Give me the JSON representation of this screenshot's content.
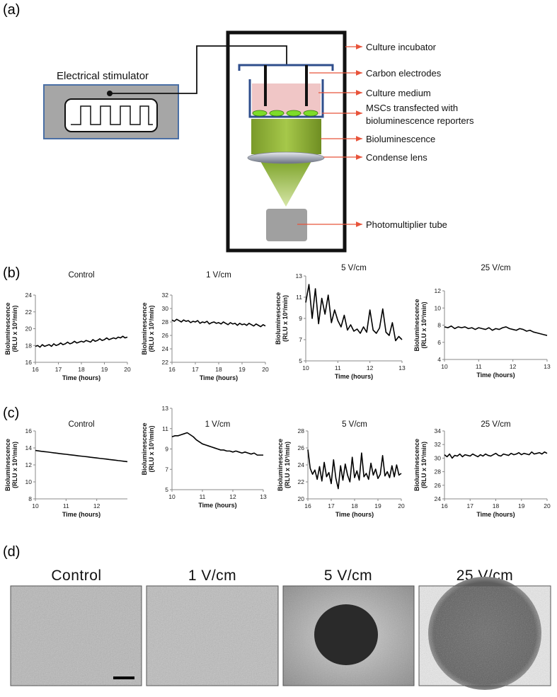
{
  "panel_labels": [
    "(a)",
    "(b)",
    "(c)",
    "(d)"
  ],
  "diagram": {
    "stimulator": "Electrical stimulator",
    "callouts": [
      [
        "Culture incubator"
      ],
      [
        "Carbon electrodes"
      ],
      [
        "Culture medium"
      ],
      [
        "MSCs transfected with",
        "bioluminescence reporters"
      ],
      [
        "Bioluminescence"
      ],
      [
        "Condense lens"
      ],
      [
        "Photomultiplier tube"
      ]
    ]
  },
  "chart_data": [
    {
      "type": "line",
      "title": "Control",
      "xlabel": "Time (hours)",
      "ylabel": [
        "Bioluminescence",
        "(RLU x 10³/min)"
      ],
      "color": "#000000",
      "x": [
        16,
        16.1,
        16.2,
        16.3,
        16.4,
        16.5,
        16.6,
        16.7,
        16.8,
        16.9,
        17,
        17.1,
        17.2,
        17.3,
        17.4,
        17.5,
        17.6,
        17.7,
        17.8,
        17.9,
        18,
        18.1,
        18.2,
        18.3,
        18.4,
        18.5,
        18.6,
        18.7,
        18.8,
        18.9,
        19,
        19.1,
        19.2,
        19.3,
        19.4,
        19.5,
        19.6,
        19.7,
        19.8,
        19.9,
        20
      ],
      "values": [
        17.9,
        18.0,
        17.8,
        18.1,
        17.9,
        18.0,
        18.1,
        17.9,
        18.2,
        18.0,
        18.1,
        18.3,
        18.1,
        18.2,
        18.4,
        18.2,
        18.3,
        18.5,
        18.3,
        18.4,
        18.5,
        18.4,
        18.6,
        18.5,
        18.4,
        18.7,
        18.5,
        18.6,
        18.8,
        18.6,
        18.7,
        18.9,
        18.7,
        18.8,
        18.9,
        18.8,
        19.0,
        18.9,
        19.1,
        18.9,
        19.0
      ],
      "xlim": [
        16,
        20
      ],
      "xticks": [
        16,
        17,
        18,
        19,
        20
      ],
      "ylim": [
        16,
        24
      ],
      "yticks": [
        16,
        18,
        20,
        22,
        24
      ]
    },
    {
      "type": "line",
      "title": "1 V/cm",
      "xlabel": "Time (hours)",
      "ylabel": [
        "Bioluminescence",
        "(RLU x 10³/min)"
      ],
      "color": "#000000",
      "x": [
        16,
        16.1,
        16.2,
        16.3,
        16.4,
        16.5,
        16.6,
        16.7,
        16.8,
        16.9,
        17,
        17.1,
        17.2,
        17.3,
        17.4,
        17.5,
        17.6,
        17.7,
        17.8,
        17.9,
        18,
        18.1,
        18.2,
        18.3,
        18.4,
        18.5,
        18.6,
        18.7,
        18.8,
        18.9,
        19,
        19.1,
        19.2,
        19.3,
        19.4,
        19.5,
        19.6,
        19.7,
        19.8,
        19.9,
        20
      ],
      "values": [
        28.3,
        28.1,
        28.4,
        28.2,
        28.0,
        28.3,
        28.1,
        28.2,
        27.9,
        28.1,
        28.0,
        28.2,
        27.8,
        28.0,
        27.9,
        28.1,
        27.7,
        27.9,
        28.0,
        27.8,
        27.9,
        27.7,
        28.0,
        27.8,
        27.6,
        27.9,
        27.7,
        27.8,
        27.5,
        27.8,
        27.6,
        27.7,
        27.5,
        27.8,
        27.6,
        27.4,
        27.7,
        27.5,
        27.3,
        27.6,
        27.4
      ],
      "xlim": [
        16,
        20
      ],
      "xticks": [
        16,
        17,
        18,
        19,
        20
      ],
      "ylim": [
        22,
        32
      ],
      "yticks": [
        22,
        24,
        26,
        28,
        30,
        32
      ]
    },
    {
      "type": "line",
      "title": "5 V/cm",
      "xlabel": "Time (hours)",
      "ylabel": [
        "Bioluminescence",
        "(RLU x 10³/min)"
      ],
      "color": "#000000",
      "x": [
        10,
        10.1,
        10.2,
        10.3,
        10.4,
        10.5,
        10.6,
        10.7,
        10.8,
        10.9,
        11,
        11.1,
        11.2,
        11.3,
        11.4,
        11.5,
        11.6,
        11.7,
        11.8,
        11.9,
        12,
        12.1,
        12.2,
        12.3,
        12.4,
        12.5,
        12.6,
        12.7,
        12.8,
        12.9,
        13
      ],
      "values": [
        10.5,
        12.2,
        9.0,
        11.8,
        8.5,
        10.9,
        9.4,
        11.2,
        8.6,
        9.8,
        8.8,
        8.2,
        9.3,
        7.9,
        8.4,
        7.8,
        8.0,
        7.6,
        8.2,
        7.7,
        9.8,
        7.9,
        7.6,
        8.1,
        9.9,
        7.7,
        7.4,
        8.6,
        6.9,
        7.3,
        7.0
      ],
      "xlim": [
        10,
        13
      ],
      "xticks": [
        10,
        11,
        12,
        13
      ],
      "ylim": [
        5,
        13
      ],
      "yticks": [
        5,
        7,
        9,
        11,
        13
      ]
    },
    {
      "type": "line",
      "title": "25 V/cm",
      "xlabel": "Time (hours)",
      "ylabel": [
        "Bioluminescence",
        "(RLU x 10³/min)"
      ],
      "color": "#000000",
      "x": [
        10,
        10.1,
        10.2,
        10.3,
        10.4,
        10.5,
        10.6,
        10.7,
        10.8,
        10.9,
        11,
        11.1,
        11.2,
        11.3,
        11.4,
        11.5,
        11.6,
        11.7,
        11.8,
        11.9,
        12,
        12.1,
        12.2,
        12.3,
        12.4,
        12.5,
        12.6,
        12.7,
        12.8,
        12.9,
        13
      ],
      "values": [
        7.8,
        7.7,
        7.9,
        7.6,
        7.8,
        7.7,
        7.8,
        7.6,
        7.7,
        7.5,
        7.7,
        7.6,
        7.5,
        7.7,
        7.4,
        7.6,
        7.5,
        7.7,
        7.8,
        7.6,
        7.5,
        7.4,
        7.6,
        7.5,
        7.3,
        7.4,
        7.2,
        7.1,
        7.0,
        6.9,
        6.8
      ],
      "xlim": [
        10,
        13
      ],
      "xticks": [
        10,
        11,
        12,
        13
      ],
      "ylim": [
        4,
        12
      ],
      "yticks": [
        4,
        6,
        8,
        10,
        12
      ]
    },
    {
      "type": "line",
      "title": "Control",
      "xlabel": "Time (hours)",
      "ylabel": [
        "Bioluminescence",
        "(RLU x 10³/min)"
      ],
      "color": "#000000",
      "x": [
        10,
        10.1,
        10.2,
        10.3,
        10.4,
        10.5,
        10.6,
        10.7,
        10.8,
        10.9,
        11,
        11.1,
        11.2,
        11.3,
        11.4,
        11.5,
        11.6,
        11.7,
        11.8,
        11.9,
        12,
        12.1,
        12.2,
        12.3,
        12.4,
        12.5,
        12.6,
        12.7,
        12.8,
        12.9,
        13
      ],
      "values": [
        13.7,
        13.65,
        13.6,
        13.56,
        13.52,
        13.47,
        13.42,
        13.38,
        13.33,
        13.29,
        13.25,
        13.2,
        13.16,
        13.12,
        13.07,
        13.03,
        12.99,
        12.95,
        12.9,
        12.86,
        12.82,
        12.77,
        12.73,
        12.69,
        12.64,
        12.6,
        12.56,
        12.51,
        12.47,
        12.42,
        12.38
      ],
      "xlim": [
        10,
        13
      ],
      "xticks": [
        10,
        11,
        12
      ],
      "ylim": [
        8,
        16
      ],
      "yticks": [
        8,
        10,
        12,
        14,
        16
      ]
    },
    {
      "type": "line",
      "title": "1 V/cm",
      "xlabel": "Time (hours)",
      "ylabel": [
        "Bioluminescence",
        "(RLU x 10³/min)"
      ],
      "color": "#000000",
      "x": [
        10,
        10.1,
        10.2,
        10.3,
        10.4,
        10.5,
        10.6,
        10.7,
        10.8,
        10.9,
        11,
        11.1,
        11.2,
        11.3,
        11.4,
        11.5,
        11.6,
        11.7,
        11.8,
        11.9,
        12,
        12.1,
        12.2,
        12.3,
        12.4,
        12.5,
        12.6,
        12.7,
        12.8,
        12.9,
        13
      ],
      "values": [
        10.2,
        10.3,
        10.3,
        10.4,
        10.5,
        10.6,
        10.4,
        10.2,
        9.9,
        9.7,
        9.5,
        9.4,
        9.3,
        9.2,
        9.1,
        9.0,
        8.9,
        8.9,
        8.8,
        8.8,
        8.7,
        8.8,
        8.7,
        8.6,
        8.7,
        8.6,
        8.5,
        8.6,
        8.4,
        8.4,
        8.4
      ],
      "xlim": [
        10,
        13
      ],
      "xticks": [
        10,
        11,
        12,
        13
      ],
      "ylim": [
        5,
        13
      ],
      "yticks": [
        5,
        7,
        9,
        11,
        13
      ]
    },
    {
      "type": "line",
      "title": "5 V/cm",
      "xlabel": "Time (hours)",
      "ylabel": [
        "Bioluminescence",
        "(RLU x 10³/min)"
      ],
      "color": "#000000",
      "x": [
        16,
        16.1,
        16.2,
        16.3,
        16.4,
        16.5,
        16.6,
        16.7,
        16.8,
        16.9,
        17,
        17.1,
        17.2,
        17.3,
        17.4,
        17.5,
        17.6,
        17.7,
        17.8,
        17.9,
        18,
        18.1,
        18.2,
        18.3,
        18.4,
        18.5,
        18.6,
        18.7,
        18.8,
        18.9,
        19,
        19.1,
        19.2,
        19.3,
        19.4,
        19.5,
        19.6,
        19.7,
        19.8,
        19.9,
        20
      ],
      "values": [
        25.8,
        23.6,
        22.9,
        23.4,
        22.3,
        23.8,
        22.1,
        24.3,
        22.6,
        23.1,
        21.8,
        24.6,
        22.4,
        21.2,
        23.9,
        22.2,
        24.1,
        22.8,
        22.0,
        24.9,
        22.5,
        23.3,
        22.2,
        25.4,
        22.6,
        23.0,
        22.3,
        24.2,
        22.8,
        23.5,
        22.4,
        22.9,
        25.1,
        22.7,
        23.2,
        22.5,
        23.9,
        22.6,
        24.0,
        22.8,
        23.0
      ],
      "xlim": [
        16,
        20
      ],
      "xticks": [
        16,
        17,
        18,
        19,
        20
      ],
      "ylim": [
        20,
        28
      ],
      "yticks": [
        20,
        22,
        24,
        26,
        28
      ]
    },
    {
      "type": "line",
      "title": "25 V/cm",
      "xlabel": "Time (hours)",
      "ylabel": [
        "Bioluminescence",
        "(RLU x 10³/min)"
      ],
      "color": "#000000",
      "x": [
        16,
        16.1,
        16.2,
        16.3,
        16.4,
        16.5,
        16.6,
        16.7,
        16.8,
        16.9,
        17,
        17.1,
        17.2,
        17.3,
        17.4,
        17.5,
        17.6,
        17.7,
        17.8,
        17.9,
        18,
        18.1,
        18.2,
        18.3,
        18.4,
        18.5,
        18.6,
        18.7,
        18.8,
        18.9,
        19,
        19.1,
        19.2,
        19.3,
        19.4,
        19.5,
        19.6,
        19.7,
        19.8,
        19.9,
        20
      ],
      "values": [
        30.5,
        30.2,
        30.6,
        30.0,
        30.4,
        30.3,
        30.6,
        30.2,
        30.5,
        30.4,
        30.3,
        30.6,
        30.4,
        30.2,
        30.5,
        30.3,
        30.6,
        30.4,
        30.3,
        30.5,
        30.7,
        30.4,
        30.3,
        30.6,
        30.5,
        30.4,
        30.7,
        30.5,
        30.6,
        30.8,
        30.5,
        30.7,
        30.6,
        30.5,
        30.9,
        30.6,
        30.7,
        30.8,
        30.6,
        30.9,
        30.7
      ],
      "xlim": [
        16,
        20
      ],
      "xticks": [
        16,
        17,
        18,
        19,
        20
      ],
      "ylim": [
        24,
        34
      ],
      "yticks": [
        24,
        26,
        28,
        30,
        32,
        34
      ]
    }
  ],
  "micrographs": {
    "labels": [
      "Control",
      "1 V/cm",
      "5 V/cm",
      "25 V/cm"
    ]
  }
}
